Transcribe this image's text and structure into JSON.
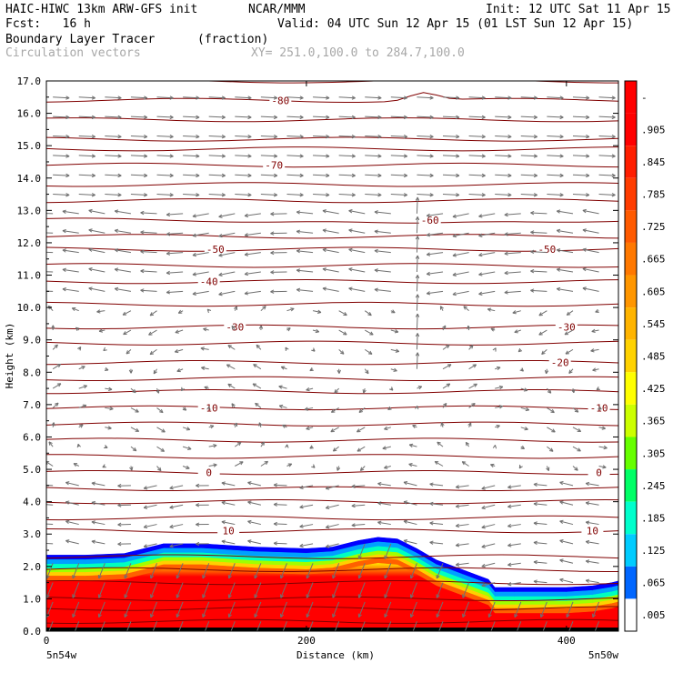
{
  "header": {
    "model": "HAIC-HIWC 13km ARW-GFS init",
    "org": "NCAR/MMM",
    "init": "Init: 12 UTC Sat 11 Apr 15",
    "fcst": "Fcst:   16 h",
    "valid": "Valid: 04 UTC Sun 12 Apr 15 (01 LST Sun 12 Apr 15)",
    "field": "Boundary Layer Tracer",
    "units": "(fraction)",
    "vectors": "Circulation vectors",
    "xsec": "XY= 251.0,100.0 to 284.7,100.0"
  },
  "chart_data": {
    "type": "heatmap",
    "xlabel": "Distance (km)",
    "ylabel": "Height (km)",
    "xlim": [
      0,
      440
    ],
    "ylim": [
      0.0,
      17.0
    ],
    "x_ticks": [
      "0",
      "200",
      "400"
    ],
    "y_ticks": [
      "0.0",
      "1.0",
      "2.0",
      "3.0",
      "4.0",
      "5.0",
      "6.0",
      "7.0",
      "8.0",
      "9.0",
      "10.0",
      "11.0",
      "12.0",
      "13.0",
      "14.0",
      "15.0",
      "16.0",
      "17.0"
    ],
    "left_endpoint": "5n54w",
    "right_endpoint": "5n50w",
    "colorbar_labels": [
      "-",
      ".905",
      ".845",
      ".785",
      ".725",
      ".665",
      ".605",
      ".545",
      ".485",
      ".425",
      ".365",
      ".305",
      ".245",
      ".185",
      ".125",
      ".065",
      ".005"
    ],
    "colorbar_colors": [
      "#ff0000",
      "#ff0000",
      "#ff1e00",
      "#ff3c00",
      "#ff5a00",
      "#ff7800",
      "#ff9600",
      "#ffb400",
      "#ffd200",
      "#ffff00",
      "#ccff00",
      "#66ff00",
      "#00ff66",
      "#00ffcc",
      "#00ccff",
      "#0066ff",
      "#ffffff"
    ],
    "tracer_top_km": {
      "x": [
        0,
        30,
        60,
        75,
        90,
        120,
        160,
        200,
        220,
        240,
        255,
        270,
        285,
        300,
        320,
        340,
        345,
        360,
        400,
        420,
        435,
        440
      ],
      "y": [
        2.35,
        2.35,
        2.4,
        2.55,
        2.7,
        2.7,
        2.6,
        2.55,
        2.6,
        2.8,
        2.9,
        2.85,
        2.55,
        2.2,
        1.9,
        1.6,
        1.35,
        1.35,
        1.35,
        1.4,
        1.5,
        1.55
      ]
    },
    "temperature_contours": [
      {
        "label": "-80",
        "km": 16.4,
        "label_x": 180
      },
      {
        "label": "-70",
        "km": 14.4,
        "label_x": 175
      },
      {
        "label": "-60",
        "km": 12.7,
        "label_x": 295
      },
      {
        "label": "-50",
        "km": 11.8,
        "label_x": 130
      },
      {
        "label": "-50",
        "km": 11.8,
        "label_x": 385
      },
      {
        "label": "-40",
        "km": 10.8,
        "label_x": 125
      },
      {
        "label": "-30",
        "km": 9.4,
        "label_x": 145
      },
      {
        "label": "-30",
        "km": 9.4,
        "label_x": 400
      },
      {
        "label": "-20",
        "km": 8.3,
        "label_x": 395
      },
      {
        "label": "-10",
        "km": 6.9,
        "label_x": 125
      },
      {
        "label": "-10",
        "km": 6.9,
        "label_x": 425
      },
      {
        "label": "0",
        "km": 4.9,
        "label_x": 125
      },
      {
        "label": "0",
        "km": 4.9,
        "label_x": 425
      },
      {
        "label": "10",
        "km": 3.1,
        "label_x": 140
      },
      {
        "label": "10",
        "km": 3.1,
        "label_x": 420
      }
    ]
  }
}
